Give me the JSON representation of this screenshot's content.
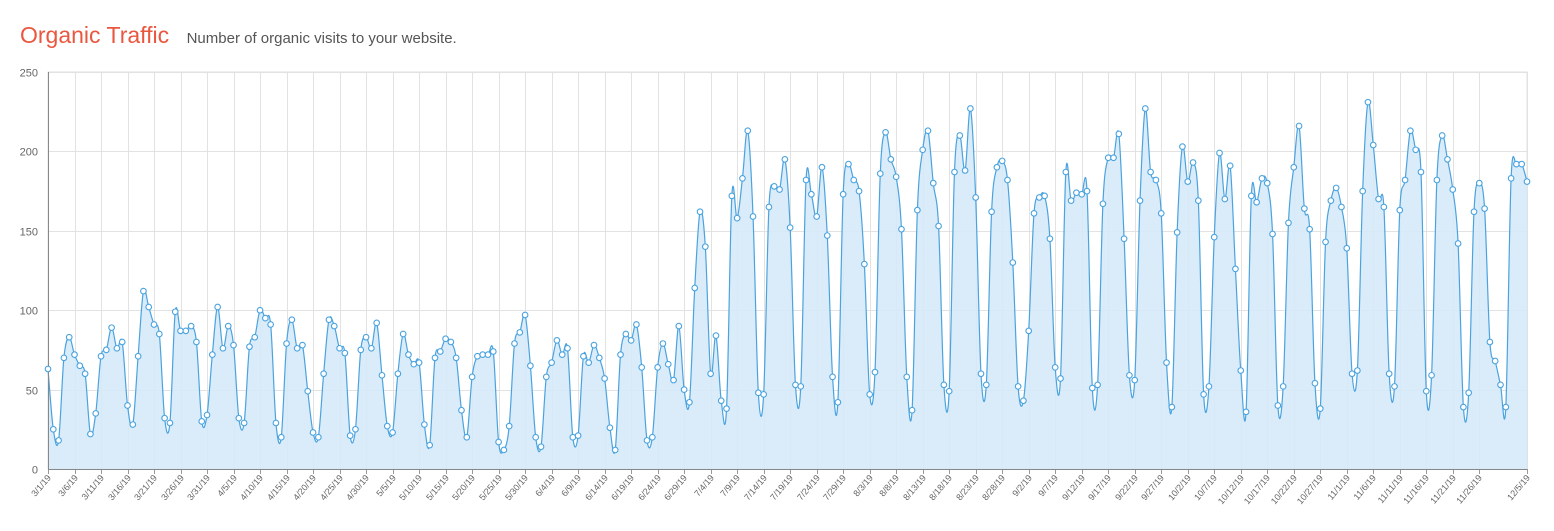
{
  "header": {
    "title": "Organic Traffic",
    "subtitle": "Number of organic visits to your website."
  },
  "chart_data": {
    "type": "area",
    "title": "Organic Traffic",
    "subtitle": "Number of organic visits to your website.",
    "start_date": "2019-03-01",
    "ylim": [
      0,
      250
    ],
    "y_ticks": [
      0,
      50,
      100,
      150,
      200,
      250
    ],
    "x_ticks": [
      "3/1/19",
      "3/6/19",
      "3/11/19",
      "3/16/19",
      "3/21/19",
      "3/26/19",
      "3/31/19",
      "4/5/19",
      "4/10/19",
      "4/15/19",
      "4/20/19",
      "4/25/19",
      "4/30/19",
      "5/5/19",
      "5/10/19",
      "5/15/19",
      "5/20/19",
      "5/25/19",
      "5/30/19",
      "6/4/19",
      "6/9/19",
      "6/14/19",
      "6/19/19",
      "6/24/19",
      "6/29/19",
      "7/4/19",
      "7/9/19",
      "7/14/19",
      "7/19/19",
      "7/24/19",
      "7/29/19",
      "8/3/19",
      "8/8/19",
      "8/13/19",
      "8/18/19",
      "8/23/19",
      "8/28/19",
      "9/2/19",
      "9/7/19",
      "9/12/19",
      "9/17/19",
      "9/22/19",
      "9/27/19",
      "10/2/19",
      "10/7/19",
      "10/12/19",
      "10/17/19",
      "10/22/19",
      "10/27/19",
      "11/1/19",
      "11/6/19",
      "11/11/19",
      "11/16/19",
      "11/21/19",
      "11/26/19",
      "12/5/19"
    ],
    "grid": true,
    "colors": {
      "line": "#4aa3df",
      "fill": "#d6eaf8",
      "point_fill": "#ffffff",
      "grid": "#e2e2e2"
    },
    "series": [
      {
        "values": [
          63,
          25,
          18,
          70,
          83,
          72,
          65,
          60,
          22,
          35,
          71,
          75,
          89,
          76,
          80,
          40,
          28,
          71,
          112,
          102,
          91,
          85,
          32,
          29,
          99,
          87,
          87,
          90,
          80,
          30,
          34,
          72,
          102,
          76,
          90,
          78,
          32,
          29,
          77,
          83,
          100,
          95,
          91,
          29,
          20,
          79,
          94,
          76,
          78,
          49,
          23,
          20,
          60,
          94,
          90,
          76,
          73,
          21,
          25,
          75,
          83,
          76,
          92,
          59,
          27,
          23,
          60,
          85,
          72,
          66,
          67,
          28,
          15,
          70,
          74,
          82,
          80,
          70,
          37,
          20,
          58,
          71,
          72,
          72,
          74,
          17,
          12,
          27,
          79,
          86,
          97,
          65,
          20,
          14,
          58,
          67,
          81,
          72,
          76,
          20,
          21,
          71,
          67,
          78,
          70,
          57,
          26,
          12,
          72,
          85,
          81,
          91,
          64,
          18,
          20,
          64,
          79,
          66,
          56,
          90,
          50,
          42,
          114,
          162,
          140,
          60,
          84,
          43,
          38,
          172,
          158,
          183,
          213,
          159,
          48,
          47,
          165,
          178,
          176,
          195,
          152,
          53,
          52,
          182,
          173,
          159,
          190,
          147,
          58,
          42,
          173,
          192,
          182,
          175,
          129,
          47,
          61,
          186,
          212,
          195,
          184,
          151,
          58,
          37,
          163,
          201,
          213,
          180,
          153,
          53,
          49,
          187,
          210,
          188,
          227,
          171,
          60,
          53,
          162,
          190,
          194,
          182,
          130,
          52,
          43,
          87,
          161,
          171,
          172,
          145,
          64,
          57,
          187,
          169,
          174,
          173,
          175,
          51,
          53,
          167,
          196,
          196,
          211,
          145,
          59,
          56,
          169,
          227,
          187,
          182,
          161,
          67,
          39,
          149,
          203,
          181,
          193,
          169,
          47,
          52,
          146,
          199,
          170,
          191,
          126,
          62,
          36,
          172,
          168,
          183,
          180,
          148,
          40,
          52,
          155,
          190,
          216,
          164,
          151,
          54,
          38,
          143,
          169,
          177,
          165,
          139,
          60,
          62,
          175,
          231,
          204,
          170,
          165,
          60,
          52,
          163,
          182,
          213,
          201,
          187,
          49,
          59,
          182,
          210,
          195,
          176,
          142,
          39,
          48,
          162,
          180,
          164,
          80,
          68,
          53,
          39,
          183,
          192,
          192,
          181
        ]
      }
    ]
  }
}
